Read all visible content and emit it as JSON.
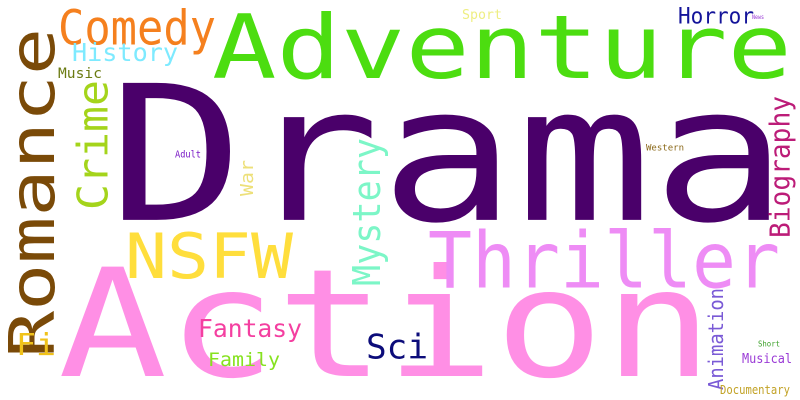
{
  "words": [
    {
      "text": "Drama",
      "color": "#4a006a"
    },
    {
      "text": "Action",
      "color": "#ff8fe5"
    },
    {
      "text": "Adventure",
      "color": "#4cdd10"
    },
    {
      "text": "Romance",
      "color": "#7a4a08"
    },
    {
      "text": "Thriller",
      "color": "#ee8cf5"
    },
    {
      "text": "NSFW",
      "color": "#ffde3c"
    },
    {
      "text": "Comedy",
      "color": "#f5801e"
    },
    {
      "text": "Crime",
      "color": "#a4d41b"
    },
    {
      "text": "Mystery",
      "color": "#7cf6c7"
    },
    {
      "text": "Biography",
      "color": "#bc1c78"
    },
    {
      "text": "History",
      "color": "#7eeaff"
    },
    {
      "text": "Horror",
      "color": "#14149a"
    },
    {
      "text": "Sci",
      "color": "#0c0c7a"
    },
    {
      "text": "Fantasy",
      "color": "#f43fa0"
    },
    {
      "text": "Animation",
      "color": "#7a5ad6"
    },
    {
      "text": "Family",
      "color": "#86e21f"
    },
    {
      "text": "Fi",
      "color": "#f0c21a"
    },
    {
      "text": "War",
      "color": "#ede07a"
    },
    {
      "text": "Music",
      "color": "#6b7b12"
    },
    {
      "text": "Sport",
      "color": "#eeee82"
    },
    {
      "text": "Musical",
      "color": "#9a3ad6"
    },
    {
      "text": "Documentary",
      "color": "#c2a225"
    },
    {
      "text": "Adult",
      "color": "#7a1ac6"
    },
    {
      "text": "Western",
      "color": "#8a6818"
    },
    {
      "text": "Short",
      "color": "#3aa028"
    },
    {
      "text": "News",
      "color": "#9a3ad6"
    }
  ]
}
